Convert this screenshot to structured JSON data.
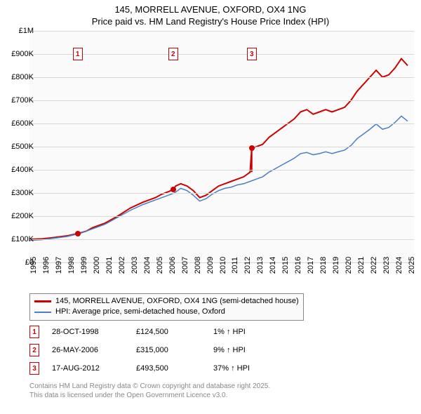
{
  "title": {
    "line1": "145, MORRELL AVENUE, OXFORD, OX4 1NG",
    "line2": "Price paid vs. HM Land Registry's House Price Index (HPI)"
  },
  "chart": {
    "type": "line",
    "background_color": "#fafafa",
    "grid_color": "#d8d8d8",
    "x": {
      "min": 1995,
      "max": 2025.5,
      "ticks": [
        1995,
        1996,
        1997,
        1998,
        1999,
        2000,
        2001,
        2002,
        2003,
        2004,
        2005,
        2006,
        2007,
        2008,
        2009,
        2010,
        2011,
        2012,
        2013,
        2014,
        2015,
        2016,
        2017,
        2018,
        2019,
        2020,
        2021,
        2022,
        2023,
        2024,
        2025
      ]
    },
    "y": {
      "min": 0,
      "max": 1000000,
      "ticks": [
        {
          "v": 0,
          "label": "£0"
        },
        {
          "v": 100000,
          "label": "£100K"
        },
        {
          "v": 200000,
          "label": "£200K"
        },
        {
          "v": 300000,
          "label": "£300K"
        },
        {
          "v": 400000,
          "label": "£400K"
        },
        {
          "v": 500000,
          "label": "£500K"
        },
        {
          "v": 600000,
          "label": "£600K"
        },
        {
          "v": 700000,
          "label": "£700K"
        },
        {
          "v": 800000,
          "label": "£800K"
        },
        {
          "v": 900000,
          "label": "£900K"
        },
        {
          "v": 1000000,
          "label": "£1M"
        }
      ]
    },
    "series": [
      {
        "name": "property",
        "label": "145, MORRELL AVENUE, OXFORD, OX4 1NG (semi-detached house)",
        "color": "#cc0000",
        "width": 2,
        "points": [
          [
            1995,
            100000
          ],
          [
            1996,
            102000
          ],
          [
            1997,
            108000
          ],
          [
            1998,
            115000
          ],
          [
            1998.82,
            124500
          ],
          [
            1999.5,
            135000
          ],
          [
            2000,
            150000
          ],
          [
            2001,
            170000
          ],
          [
            2002,
            200000
          ],
          [
            2003,
            235000
          ],
          [
            2004,
            260000
          ],
          [
            2005,
            280000
          ],
          [
            2005.5,
            295000
          ],
          [
            2006,
            305000
          ],
          [
            2006.4,
            315000
          ],
          [
            2006.6,
            330000
          ],
          [
            2007,
            340000
          ],
          [
            2007.5,
            330000
          ],
          [
            2008,
            310000
          ],
          [
            2008.5,
            280000
          ],
          [
            2009,
            290000
          ],
          [
            2009.5,
            310000
          ],
          [
            2010,
            330000
          ],
          [
            2010.5,
            340000
          ],
          [
            2011,
            350000
          ],
          [
            2011.5,
            360000
          ],
          [
            2012,
            370000
          ],
          [
            2012.5,
            390000
          ],
          [
            2012.63,
            493500
          ],
          [
            2013,
            500000
          ],
          [
            2013.5,
            510000
          ],
          [
            2014,
            540000
          ],
          [
            2014.5,
            560000
          ],
          [
            2015,
            580000
          ],
          [
            2015.5,
            600000
          ],
          [
            2016,
            620000
          ],
          [
            2016.5,
            650000
          ],
          [
            2017,
            660000
          ],
          [
            2017.5,
            640000
          ],
          [
            2018,
            650000
          ],
          [
            2018.5,
            660000
          ],
          [
            2019,
            650000
          ],
          [
            2019.5,
            660000
          ],
          [
            2020,
            670000
          ],
          [
            2020.5,
            700000
          ],
          [
            2021,
            740000
          ],
          [
            2021.5,
            770000
          ],
          [
            2022,
            800000
          ],
          [
            2022.5,
            830000
          ],
          [
            2023,
            800000
          ],
          [
            2023.5,
            810000
          ],
          [
            2024,
            840000
          ],
          [
            2024.5,
            880000
          ],
          [
            2025,
            850000
          ]
        ]
      },
      {
        "name": "hpi",
        "label": "HPI: Average price, semi-detached house, Oxford",
        "color": "#4a7fc4",
        "width": 1.5,
        "points": [
          [
            1995,
            95000
          ],
          [
            1996,
            98000
          ],
          [
            1997,
            105000
          ],
          [
            1998,
            112000
          ],
          [
            1999,
            125000
          ],
          [
            2000,
            145000
          ],
          [
            2001,
            165000
          ],
          [
            2002,
            195000
          ],
          [
            2003,
            225000
          ],
          [
            2004,
            250000
          ],
          [
            2005,
            270000
          ],
          [
            2006,
            290000
          ],
          [
            2006.5,
            300000
          ],
          [
            2007,
            320000
          ],
          [
            2007.5,
            310000
          ],
          [
            2008,
            290000
          ],
          [
            2008.5,
            265000
          ],
          [
            2009,
            275000
          ],
          [
            2009.5,
            295000
          ],
          [
            2010,
            310000
          ],
          [
            2010.5,
            320000
          ],
          [
            2011,
            325000
          ],
          [
            2011.5,
            335000
          ],
          [
            2012,
            340000
          ],
          [
            2012.5,
            350000
          ],
          [
            2013,
            360000
          ],
          [
            2013.5,
            370000
          ],
          [
            2014,
            390000
          ],
          [
            2014.5,
            405000
          ],
          [
            2015,
            420000
          ],
          [
            2015.5,
            435000
          ],
          [
            2016,
            450000
          ],
          [
            2016.5,
            470000
          ],
          [
            2017,
            475000
          ],
          [
            2017.5,
            465000
          ],
          [
            2018,
            470000
          ],
          [
            2018.5,
            478000
          ],
          [
            2019,
            470000
          ],
          [
            2019.5,
            478000
          ],
          [
            2020,
            485000
          ],
          [
            2020.5,
            505000
          ],
          [
            2021,
            535000
          ],
          [
            2021.5,
            555000
          ],
          [
            2022,
            575000
          ],
          [
            2022.5,
            598000
          ],
          [
            2023,
            575000
          ],
          [
            2023.5,
            583000
          ],
          [
            2024,
            605000
          ],
          [
            2024.5,
            632000
          ],
          [
            2025,
            610000
          ]
        ]
      }
    ],
    "sale_markers": [
      {
        "n": "1",
        "x": 1998.82,
        "y": 124500,
        "box_y": 900000
      },
      {
        "n": "2",
        "x": 2006.4,
        "y": 315000,
        "box_y": 900000
      },
      {
        "n": "3",
        "x": 2012.63,
        "y": 493500,
        "box_y": 900000
      }
    ]
  },
  "legend": {
    "items": [
      {
        "color": "#cc0000",
        "width": 3
      },
      {
        "color": "#4a7fc4",
        "width": 2
      }
    ]
  },
  "sales": [
    {
      "n": "1",
      "date": "28-OCT-1998",
      "price": "£124,500",
      "delta": "1% ↑ HPI"
    },
    {
      "n": "2",
      "date": "26-MAY-2006",
      "price": "£315,000",
      "delta": "9% ↑ HPI"
    },
    {
      "n": "3",
      "date": "17-AUG-2012",
      "price": "£493,500",
      "delta": "37% ↑ HPI"
    }
  ],
  "footer": {
    "line1": "Contains HM Land Registry data © Crown copyright and database right 2025.",
    "line2": "This data is licensed under the Open Government Licence v3.0."
  }
}
